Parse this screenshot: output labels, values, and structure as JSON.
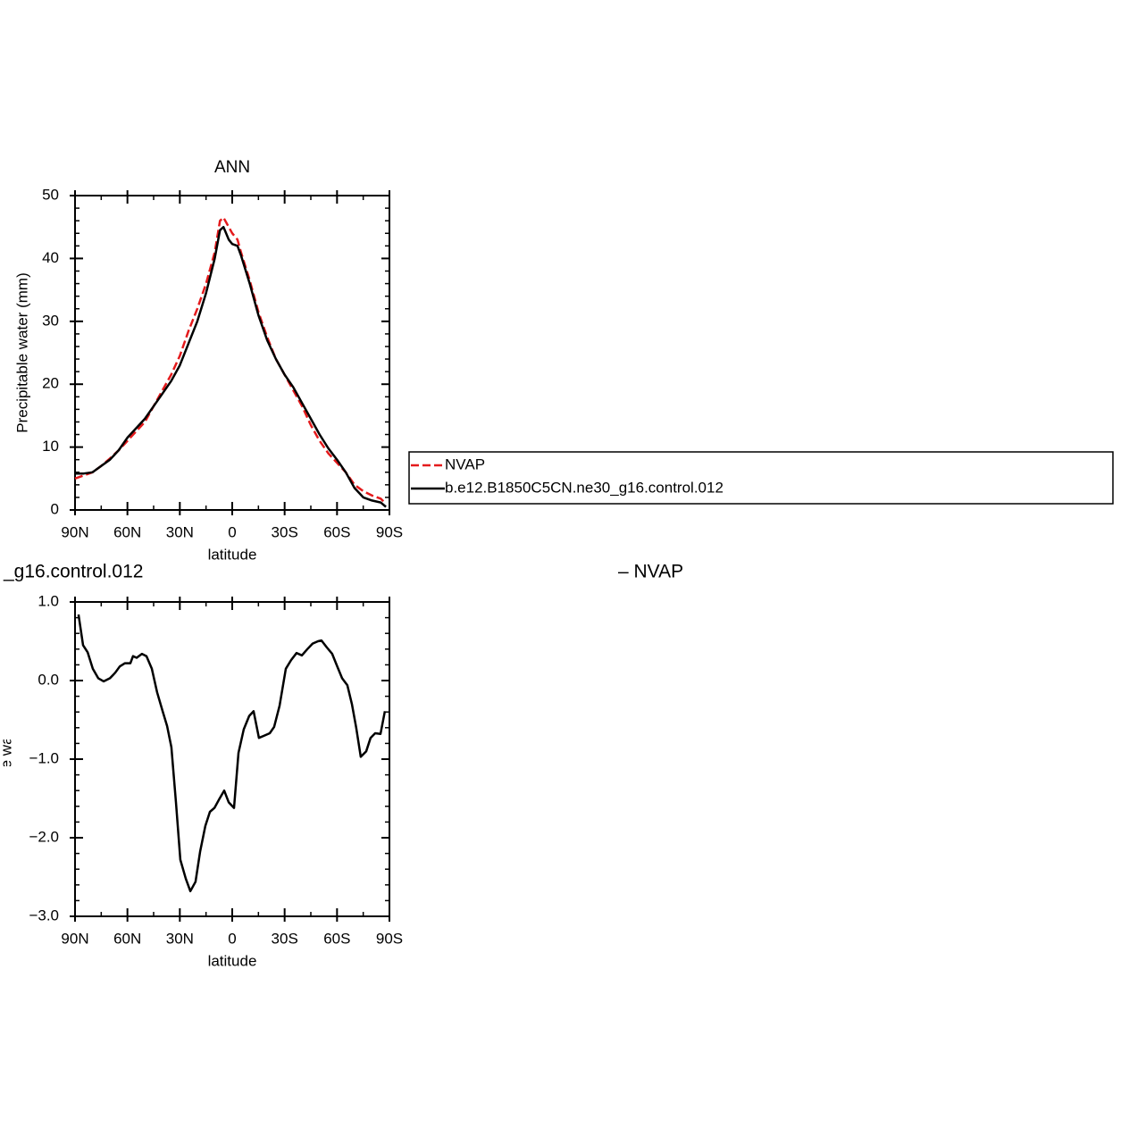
{
  "chart_data": [
    {
      "type": "line",
      "title": "ANN",
      "xlabel": "latitude",
      "ylabel": "Precipitable water (mm)",
      "x": [
        90,
        85,
        80,
        75,
        70,
        65,
        60,
        55,
        50,
        45,
        40,
        35,
        30,
        25,
        20,
        15,
        10,
        7,
        5,
        2,
        0,
        -3,
        -5,
        -10,
        -15,
        -20,
        -25,
        -30,
        -35,
        -40,
        -45,
        -50,
        -55,
        -60,
        -65,
        -70,
        -75,
        -80,
        -85,
        -88
      ],
      "series": [
        {
          "name": "NVAP",
          "color": "#e41a1c",
          "dash": true,
          "values": [
            5,
            5.5,
            6,
            7,
            8.2,
            9.5,
            11,
            12.5,
            14,
            16.5,
            19,
            21.5,
            24.5,
            28.5,
            32,
            36,
            41,
            46,
            46.5,
            45,
            44,
            43,
            41,
            36.5,
            31.5,
            27.5,
            24,
            21.5,
            19,
            16.5,
            13.5,
            11,
            9,
            7.5,
            6,
            4,
            3,
            2.3,
            1.8,
            1
          ]
        },
        {
          "name": "b.e12.B1850C5CN.ne30_g16.control.012",
          "color": "#000000",
          "dash": false,
          "values": [
            5.8,
            5.8,
            6,
            7,
            8,
            9.5,
            11.5,
            13,
            14.5,
            16.5,
            18.5,
            20.5,
            23,
            26.5,
            30,
            34.5,
            40,
            44.5,
            45,
            43,
            42.3,
            42,
            40.5,
            36,
            31,
            27,
            24,
            21.5,
            19.5,
            17,
            14.5,
            12,
            9.8,
            8,
            6,
            3.5,
            2,
            1.5,
            1.2,
            0.5
          ]
        }
      ],
      "xlim": [
        90,
        -90
      ],
      "xticks": [
        {
          "value": 90,
          "label": "90N"
        },
        {
          "value": 60,
          "label": "60N"
        },
        {
          "value": 30,
          "label": "30N"
        },
        0,
        {
          "value": -30,
          "label": "30S"
        },
        {
          "value": -60,
          "label": "60S"
        },
        {
          "value": -90,
          "label": "90S"
        }
      ],
      "xminorticks": [
        75,
        45,
        15,
        -15,
        -45,
        -75
      ],
      "ylim": [
        0,
        50
      ],
      "yticks": [
        0,
        10,
        20,
        30,
        40,
        50
      ],
      "yminorticks": [
        2,
        4,
        6,
        8,
        12,
        14,
        16,
        18,
        22,
        24,
        26,
        28,
        32,
        34,
        36,
        38,
        42,
        44,
        46,
        48
      ],
      "legend": "right"
    },
    {
      "type": "line",
      "left_title": "_g16.control.012",
      "right_title": "–  NVAP",
      "xlabel": "latitude",
      "ylabel": "Precipitable water (mm)",
      "x": [
        88,
        85.4,
        82.8,
        79.8,
        76.7,
        73.6,
        70,
        67,
        64.4,
        61.4,
        58.3,
        56.8,
        54.7,
        51.7,
        49.1,
        46,
        43,
        40,
        37.3,
        34.8,
        32.2,
        29.7,
        26.6,
        24,
        21,
        18.4,
        15.4,
        12.8,
        10.2,
        7.7,
        4.6,
        2,
        -1,
        -3.6,
        -6.6,
        -9.7,
        -12.2,
        -15.3,
        -18.4,
        -21.5,
        -24,
        -27.1,
        -30.7,
        -33.7,
        -36.8,
        -39.9,
        -43,
        -46,
        -49.1,
        -51.1,
        -54.2,
        -57.2,
        -60.3,
        -62.9,
        -65.9,
        -68.5,
        -71,
        -73.6,
        -76.7,
        -79.2,
        -81.8,
        -84.9,
        -87.4
      ],
      "series": [
        {
          "color": "#000000",
          "dash": false,
          "values": [
            0.84,
            0.45,
            0.36,
            0.15,
            0.03,
            -0.01,
            0.03,
            0.1,
            0.18,
            0.22,
            0.22,
            0.31,
            0.29,
            0.34,
            0.31,
            0.15,
            -0.15,
            -0.38,
            -0.58,
            -0.85,
            -1.55,
            -2.28,
            -2.52,
            -2.68,
            -2.56,
            -2.18,
            -1.85,
            -1.67,
            -1.62,
            -1.52,
            -1.4,
            -1.55,
            -1.62,
            -0.92,
            -0.62,
            -0.45,
            -0.39,
            -0.73,
            -0.7,
            -0.67,
            -0.59,
            -0.32,
            0.15,
            0.26,
            0.35,
            0.32,
            0.4,
            0.47,
            0.5,
            0.51,
            0.42,
            0.34,
            0.17,
            0.03,
            -0.06,
            -0.3,
            -0.6,
            -0.97,
            -0.9,
            -0.73,
            -0.67,
            -0.68,
            -0.39
          ]
        }
      ],
      "xlim": [
        90,
        -90
      ],
      "xticks": [
        {
          "value": 90,
          "label": "90N"
        },
        {
          "value": 60,
          "label": "60N"
        },
        {
          "value": 30,
          "label": "30N"
        },
        0,
        {
          "value": -30,
          "label": "30S"
        },
        {
          "value": -60,
          "label": "60S"
        },
        {
          "value": -90,
          "label": "90S"
        }
      ],
      "xminorticks": [
        75,
        45,
        15,
        -15,
        -45,
        -75
      ],
      "ylim": [
        -3,
        1
      ],
      "yticks": [
        {
          "value": 1,
          "label": "1.0"
        },
        {
          "value": 0,
          "label": "0.0"
        },
        {
          "value": -1,
          "label": "−1.0"
        },
        {
          "value": -2,
          "label": "−2.0"
        },
        {
          "value": -3,
          "label": "−3.0"
        }
      ],
      "yminorticks": [
        0.8,
        0.6,
        0.4,
        0.2,
        -0.2,
        -0.4,
        -0.6,
        -0.8,
        -1.2,
        -1.4,
        -1.6,
        -1.8,
        -2.2,
        -2.4,
        -2.6,
        -2.8
      ]
    }
  ]
}
